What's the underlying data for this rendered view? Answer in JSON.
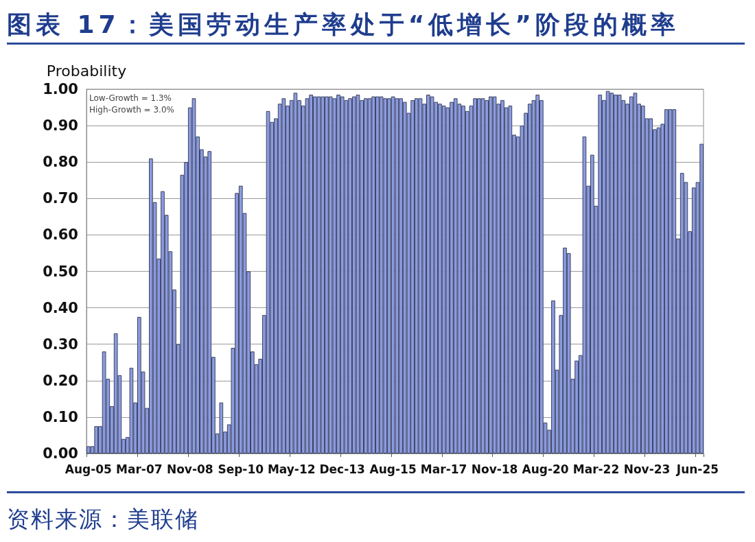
{
  "chart_data": {
    "type": "bar",
    "title": "图表 17：美国劳动生产率处于“低增长”阶段的概率",
    "ylabel": "Probability",
    "annotations": [
      "Low-Growth = 1.3%",
      "High-Growth = 3.0%",
      "资料来源：美联储"
    ],
    "categories": [
      "Aug-05",
      null,
      null,
      null,
      null,
      null,
      null,
      null,
      null,
      null,
      null,
      null,
      null,
      "Mar-07",
      null,
      null,
      null,
      null,
      null,
      null,
      null,
      null,
      null,
      null,
      null,
      null,
      "Nov-08",
      null,
      null,
      null,
      null,
      null,
      null,
      null,
      null,
      null,
      null,
      null,
      null,
      "Sep-10",
      null,
      null,
      null,
      null,
      null,
      null,
      null,
      null,
      null,
      null,
      null,
      null,
      "May-12",
      null,
      null,
      null,
      null,
      null,
      null,
      null,
      null,
      null,
      null,
      null,
      null,
      "Dec-13",
      null,
      null,
      null,
      null,
      null,
      null,
      null,
      null,
      null,
      null,
      null,
      null,
      "Aug-15",
      null,
      null,
      null,
      null,
      null,
      null,
      null,
      null,
      null,
      null,
      null,
      null,
      "Mar-17",
      null,
      null,
      null,
      null,
      null,
      null,
      null,
      null,
      null,
      null,
      null,
      null,
      "Nov-18",
      null,
      null,
      null,
      null,
      null,
      null,
      null,
      null,
      null,
      null,
      null,
      null,
      "Aug-20",
      null,
      null,
      null,
      null,
      null,
      null,
      null,
      null,
      null,
      null,
      null,
      null,
      "Mar-22",
      null,
      null,
      null,
      null,
      null,
      null,
      null,
      null,
      null,
      null,
      null,
      null,
      "Nov-23",
      null,
      null,
      null,
      null,
      null,
      null,
      null,
      null,
      null,
      null,
      null,
      null,
      "Jun-25",
      null
    ],
    "values": [
      0.02,
      0.02,
      0.075,
      0.075,
      0.28,
      0.205,
      0.13,
      0.33,
      0.215,
      0.04,
      0.045,
      0.235,
      0.14,
      0.375,
      0.225,
      0.125,
      0.81,
      0.69,
      0.535,
      0.72,
      0.655,
      0.555,
      0.45,
      0.3,
      0.765,
      0.8,
      0.95,
      0.975,
      0.87,
      0.835,
      0.815,
      0.83,
      0.265,
      0.055,
      0.14,
      0.06,
      0.08,
      0.29,
      0.715,
      0.735,
      0.66,
      0.5,
      0.28,
      0.245,
      0.26,
      0.38,
      0.94,
      0.91,
      0.92,
      0.96,
      0.975,
      0.955,
      0.97,
      0.99,
      0.97,
      0.955,
      0.975,
      0.985,
      0.98,
      0.98,
      0.98,
      0.98,
      0.98,
      0.975,
      0.985,
      0.98,
      0.97,
      0.975,
      0.98,
      0.985,
      0.97,
      0.975,
      0.975,
      0.98,
      0.98,
      0.98,
      0.975,
      0.975,
      0.98,
      0.975,
      0.975,
      0.965,
      0.935,
      0.97,
      0.975,
      0.975,
      0.96,
      0.985,
      0.98,
      0.965,
      0.96,
      0.955,
      0.95,
      0.965,
      0.975,
      0.96,
      0.955,
      0.94,
      0.955,
      0.975,
      0.975,
      0.975,
      0.97,
      0.98,
      0.98,
      0.96,
      0.97,
      0.95,
      0.955,
      0.875,
      0.87,
      0.9,
      0.935,
      0.96,
      0.97,
      0.985,
      0.97,
      0.085,
      0.065,
      0.42,
      0.23,
      0.38,
      0.565,
      0.55,
      0.205,
      0.255,
      0.27,
      0.87,
      0.735,
      0.82,
      0.68,
      0.985,
      0.97,
      0.995,
      0.99,
      0.985,
      0.985,
      0.97,
      0.96,
      0.98,
      0.99,
      0.96,
      0.955,
      0.92,
      0.92,
      0.89,
      0.895,
      0.905,
      0.945,
      0.945,
      0.945,
      0.59,
      0.77,
      0.745,
      0.61,
      0.73,
      0.745,
      0.85
    ],
    "color": "#8b9be0",
    "ylim": [
      0,
      1
    ],
    "yticks": [
      {
        "value": 0,
        "label": "0.00"
      },
      {
        "value": 0.1,
        "label": "0.10"
      },
      {
        "value": 0.2,
        "label": "0.20"
      },
      {
        "value": 0.3,
        "label": "0.30"
      },
      {
        "value": 0.4,
        "label": "0.40"
      },
      {
        "value": 0.5,
        "label": "0.50"
      },
      {
        "value": 0.6,
        "label": "0.60"
      },
      {
        "value": 0.7,
        "label": "0.70"
      },
      {
        "value": 0.8,
        "label": "0.80"
      },
      {
        "value": 0.9,
        "label": "0.90"
      },
      {
        "value": 1,
        "label": "1.00"
      }
    ],
    "grid": "y"
  }
}
